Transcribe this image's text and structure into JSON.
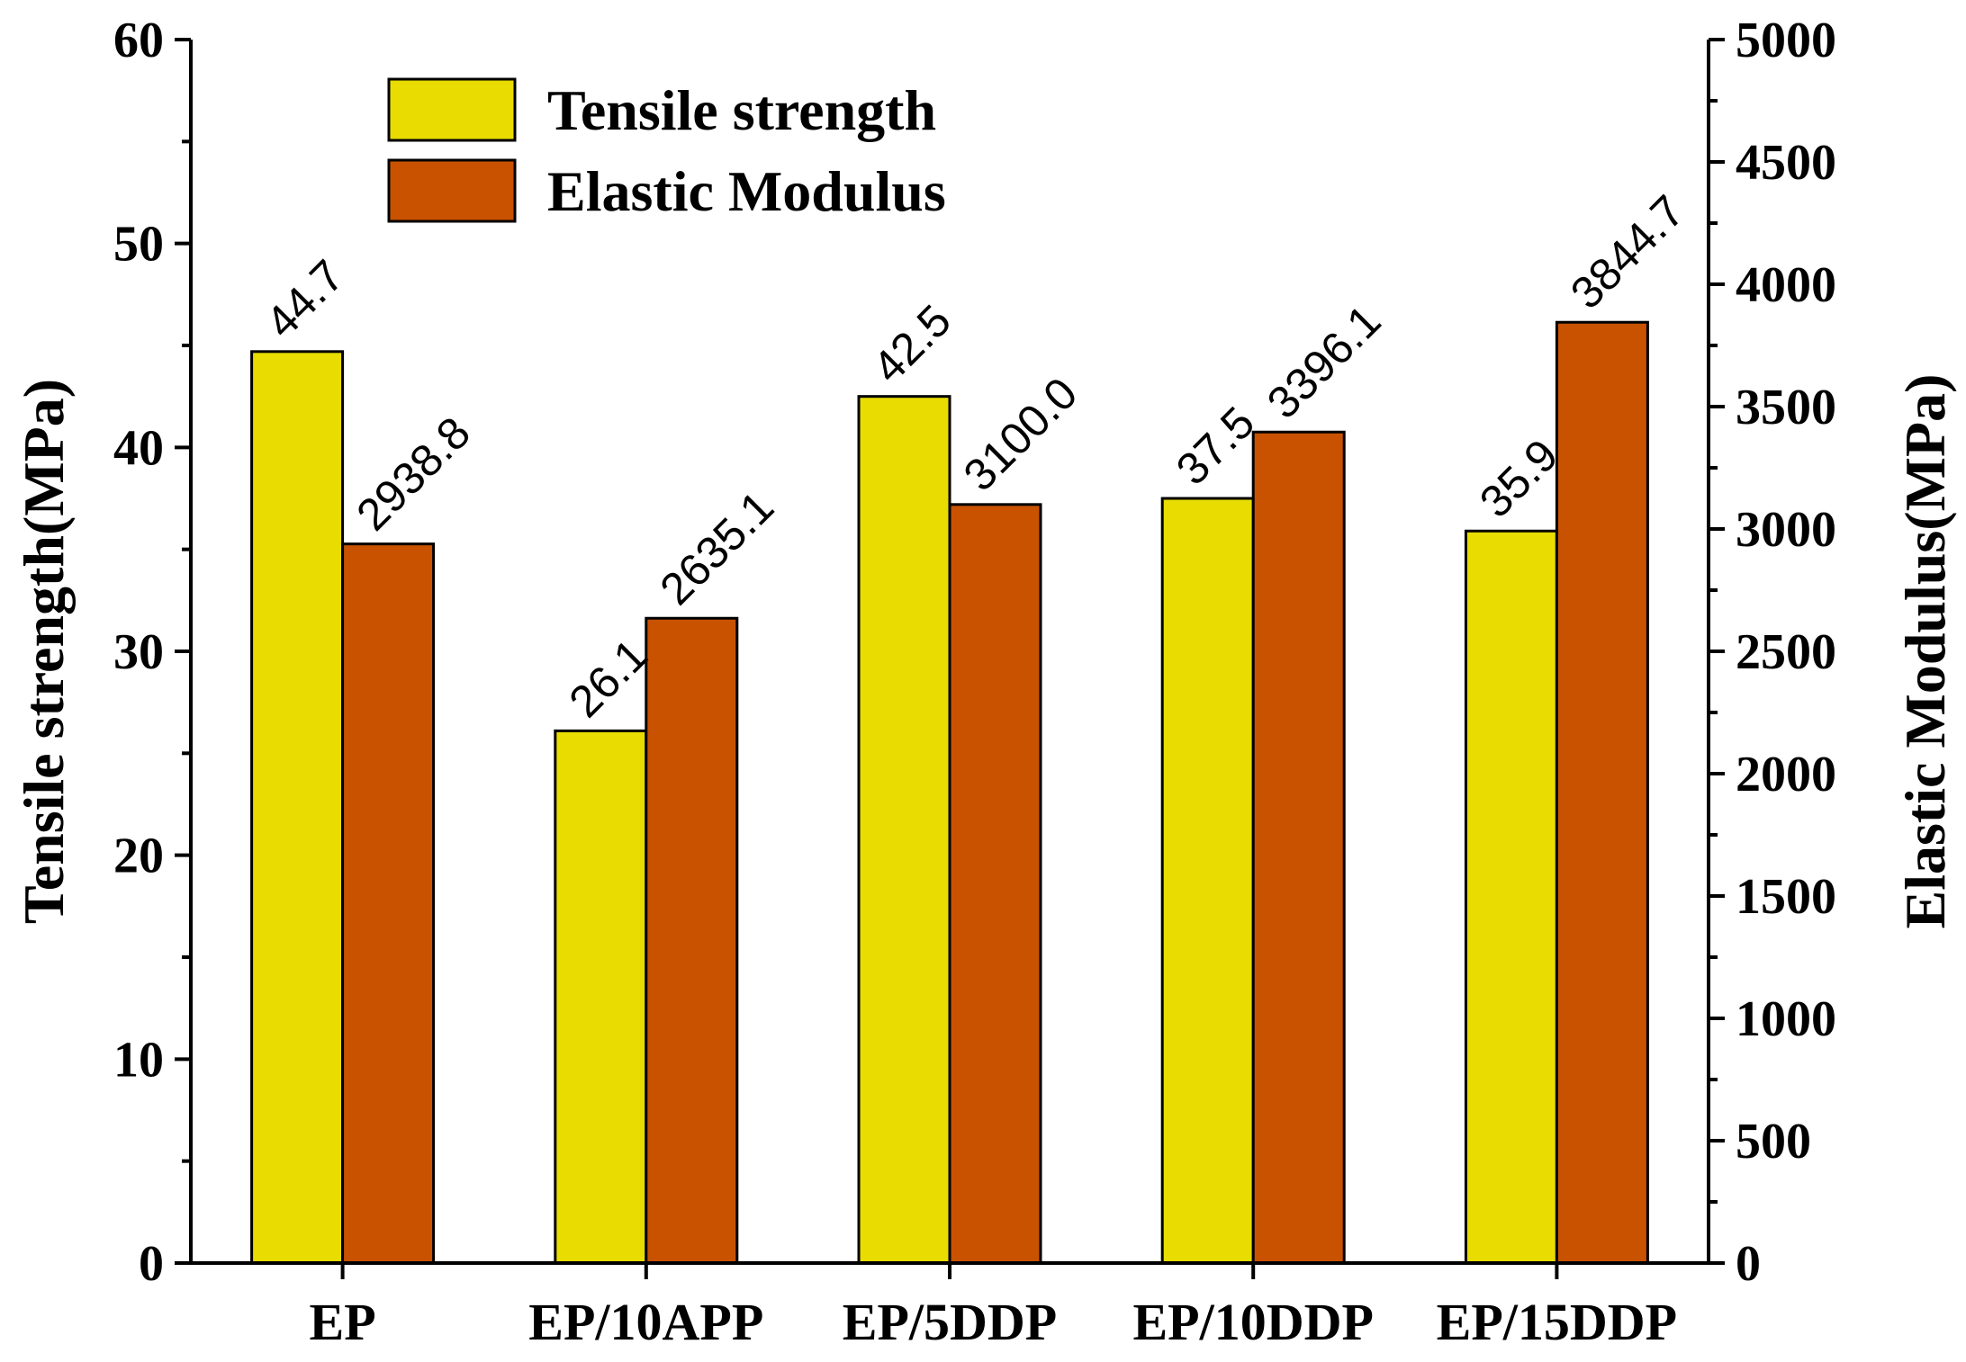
{
  "chart_data": {
    "type": "bar",
    "categories": [
      "EP",
      "EP/10APP",
      "EP/5DDP",
      "EP/10DDP",
      "EP/15DDP"
    ],
    "series": [
      {
        "name": "Tensile strength",
        "axis": "left",
        "color": "#E8DC00",
        "values": [
          44.7,
          26.1,
          42.5,
          37.5,
          35.9
        ],
        "labels": [
          "44.7",
          "26.1",
          "42.5",
          "37.5",
          "35.9"
        ]
      },
      {
        "name": "Elastic Modulus",
        "axis": "right",
        "color": "#C85200",
        "values": [
          2938.8,
          2635.1,
          3100.0,
          3396.1,
          3844.7
        ],
        "labels": [
          "2938.8",
          "2635.1",
          "3100.0",
          "3396.1",
          "3844.7"
        ]
      }
    ],
    "ylabel": "Tensile strength(MPa)",
    "y2label": "Elastic Modulus(MPa)",
    "ylim": [
      0,
      60
    ],
    "y2lim": [
      0,
      5000
    ],
    "yticks": [
      0,
      10,
      20,
      30,
      40,
      50,
      60
    ],
    "y2ticks": [
      0,
      500,
      1000,
      1500,
      2000,
      2500,
      3000,
      3500,
      4000,
      4500,
      5000
    ],
    "legend_position": "top-left",
    "grid": false
  }
}
